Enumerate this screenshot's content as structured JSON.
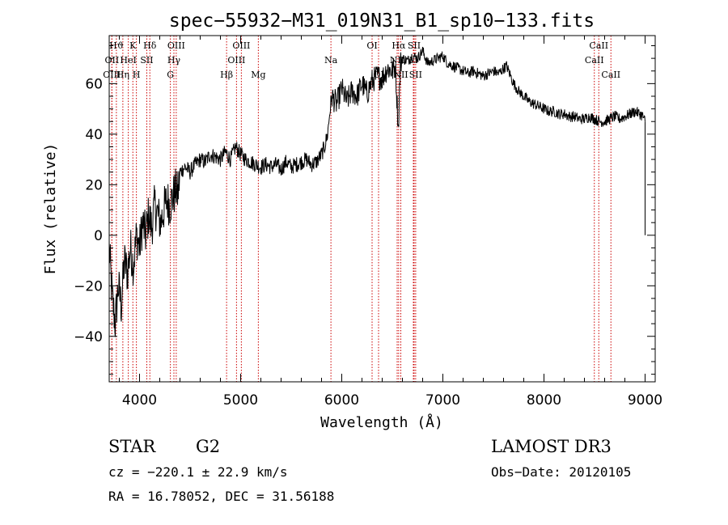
{
  "chart_data": {
    "type": "line",
    "title": "spec−55932−M31_019N31_B1_sp10−133.fits",
    "xlabel": "Wavelength (Å)",
    "ylabel": "Flux (relative)",
    "xlim": [
      3700,
      9100
    ],
    "ylim": [
      -58,
      79
    ],
    "xticks": [
      4000,
      5000,
      6000,
      7000,
      8000,
      9000
    ],
    "yticks": [
      -40,
      -20,
      0,
      20,
      40,
      60
    ],
    "xtick_labels": [
      "4000",
      "5000",
      "6000",
      "7000",
      "8000",
      "9000"
    ],
    "ytick_labels": [
      "−40",
      "−20",
      "0",
      "20",
      "40",
      "60"
    ],
    "series": [
      {
        "name": "spectrum",
        "x": [
          3700,
          3730,
          3760,
          3790,
          3820,
          3850,
          3880,
          3910,
          3940,
          3970,
          4000,
          4030,
          4060,
          4090,
          4120,
          4150,
          4180,
          4210,
          4240,
          4270,
          4300,
          4330,
          4360,
          4380,
          4400,
          4450,
          4500,
          4550,
          4600,
          4650,
          4700,
          4750,
          4800,
          4850,
          4900,
          4950,
          5000,
          5050,
          5100,
          5150,
          5200,
          5250,
          5300,
          5350,
          5400,
          5450,
          5500,
          5550,
          5600,
          5650,
          5700,
          5750,
          5800,
          5830,
          5860,
          5880,
          5900,
          5950,
          6000,
          6050,
          6100,
          6150,
          6200,
          6250,
          6300,
          6350,
          6400,
          6450,
          6500,
          6530,
          6560,
          6580,
          6600,
          6650,
          6700,
          6750,
          6800,
          6850,
          6900,
          6950,
          7000,
          7050,
          7100,
          7150,
          7200,
          7250,
          7300,
          7350,
          7400,
          7450,
          7500,
          7550,
          7600,
          7630,
          7660,
          7700,
          7750,
          7800,
          7850,
          7900,
          7950,
          8000,
          8050,
          8100,
          8150,
          8200,
          8250,
          8300,
          8350,
          8400,
          8450,
          8500,
          8550,
          8600,
          8650,
          8700,
          8750,
          8800,
          8850,
          8900,
          8950,
          8980,
          9000
        ],
        "y": [
          -5,
          -25,
          -35,
          -20,
          -28,
          -10,
          -15,
          -5,
          -12,
          0,
          -5,
          5,
          0,
          8,
          3,
          12,
          8,
          5,
          10,
          14,
          12,
          15,
          18,
          16,
          25,
          27,
          25,
          28,
          30,
          29,
          32,
          31,
          30,
          33,
          30,
          35,
          32,
          30,
          29,
          28,
          27,
          28,
          27,
          28,
          26,
          29,
          27,
          28,
          29,
          30,
          28,
          29,
          32,
          35,
          40,
          48,
          55,
          52,
          58,
          53,
          57,
          55,
          60,
          56,
          61,
          63,
          62,
          66,
          65,
          67,
          42,
          68,
          70,
          69,
          71,
          70,
          73,
          68,
          69,
          70,
          71,
          68,
          67,
          66,
          65,
          64,
          65,
          64,
          63,
          64,
          65,
          64,
          66,
          67,
          64,
          60,
          57,
          55,
          53,
          52,
          51,
          50,
          49,
          49,
          48,
          48,
          47,
          47,
          46,
          46,
          47,
          46,
          45,
          45,
          46,
          47,
          46,
          47,
          48,
          49,
          48,
          47,
          45
        ]
      }
    ],
    "lines": [
      {
        "name": "Hϑ",
        "wave": 3771,
        "row": 0
      },
      {
        "name": "K",
        "wave": 3934,
        "row": 0
      },
      {
        "name": "Hδ",
        "wave": 4102,
        "row": 0
      },
      {
        "name": "OIII",
        "wave": 4363,
        "row": 0
      },
      {
        "name": "OIII",
        "wave": 5007,
        "row": 0
      },
      {
        "name": "OI",
        "wave": 6300,
        "row": 0
      },
      {
        "name": "Hα",
        "wave": 6563,
        "row": 0
      },
      {
        "name": "SII",
        "wave": 6716,
        "row": 0
      },
      {
        "name": "CaII",
        "wave": 8542,
        "row": 0
      },
      {
        "name": "OII",
        "wave": 3727,
        "row": 1
      },
      {
        "name": "HeI",
        "wave": 3889,
        "row": 1
      },
      {
        "name": "SII",
        "wave": 4072,
        "row": 1
      },
      {
        "name": "Hγ",
        "wave": 4340,
        "row": 1
      },
      {
        "name": "OIII",
        "wave": 4959,
        "row": 1
      },
      {
        "name": "Na",
        "wave": 5893,
        "row": 1
      },
      {
        "name": "NII",
        "wave": 6548,
        "row": 1
      },
      {
        "name": "Li",
        "wave": 6708,
        "row": 1
      },
      {
        "name": "CaII",
        "wave": 8498,
        "row": 1
      },
      {
        "name": "OIII",
        "wave": 3726,
        "row": 2
      },
      {
        "name": "Hη",
        "wave": 3835,
        "row": 2
      },
      {
        "name": "H",
        "wave": 3969,
        "row": 2
      },
      {
        "name": "G",
        "wave": 4305,
        "row": 2
      },
      {
        "name": "Hβ",
        "wave": 4861,
        "row": 2
      },
      {
        "name": "Mg",
        "wave": 5175,
        "row": 2
      },
      {
        "name": "OI",
        "wave": 6364,
        "row": 2
      },
      {
        "name": "NII",
        "wave": 6584,
        "row": 2
      },
      {
        "name": "SII",
        "wave": 6731,
        "row": 2
      },
      {
        "name": "CaII",
        "wave": 8662,
        "row": 2
      }
    ]
  },
  "info": {
    "object_class": "STAR",
    "subclass": "G2",
    "survey": "LAMOST DR3",
    "cz": "cz = −220.1 ± 22.9 km/s",
    "obs_date": "Obs−Date: 20120105",
    "coords": "RA =  16.78052, DEC =  31.56188"
  }
}
